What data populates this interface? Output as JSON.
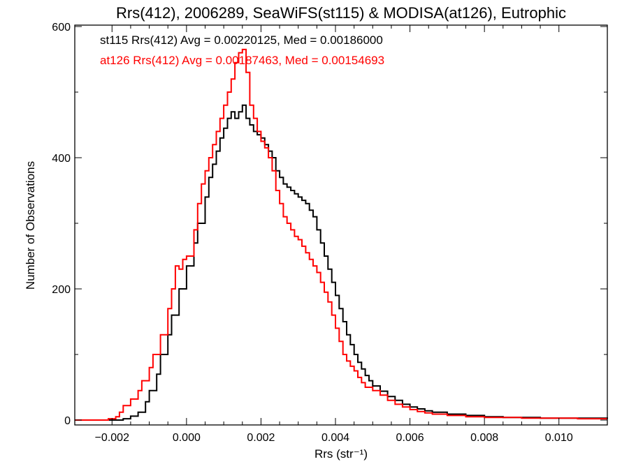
{
  "chart_data": {
    "type": "line",
    "step": true,
    "title": "Rrs(412), 2006289, SeaWiFS(st115) & MODISA(at126), Eutrophic",
    "xlabel": "Rrs (str⁻¹)",
    "ylabel": "Number of Observations",
    "xlim": [
      -0.003,
      0.0113
    ],
    "ylim": [
      0,
      600
    ],
    "xticks": [
      -0.002,
      0.0,
      0.002,
      0.004,
      0.006,
      0.008,
      0.01
    ],
    "xtick_labels": [
      "−0.002",
      "0.000",
      "0.002",
      "0.004",
      "0.006",
      "0.008",
      "0.010"
    ],
    "yticks": [
      0,
      200,
      400,
      600
    ],
    "ytick_labels": [
      "0",
      "200",
      "400",
      "600"
    ],
    "grid": false,
    "legend_position": "top-left",
    "annotations": [
      {
        "text": "st115 Rrs(412) Avg = 0.00220125, Med = 0.00186000",
        "color": "#000000"
      },
      {
        "text": "at126 Rrs(412) Avg = 0.00187463, Med = 0.00154693",
        "color": "#ff0000"
      }
    ],
    "series": [
      {
        "name": "st115",
        "color": "#000000",
        "points": [
          [
            -0.003,
            0
          ],
          [
            -0.0024,
            0
          ],
          [
            -0.002,
            0
          ],
          [
            -0.0017,
            2
          ],
          [
            -0.0015,
            6
          ],
          [
            -0.0013,
            12
          ],
          [
            -0.0011,
            28
          ],
          [
            -0.001,
            45
          ],
          [
            -0.0008,
            70
          ],
          [
            -0.0007,
            100
          ],
          [
            -0.0005,
            130
          ],
          [
            -0.0004,
            160
          ],
          [
            -0.0002,
            200
          ],
          [
            0.0,
            235
          ],
          [
            0.0002,
            270
          ],
          [
            0.0003,
            300
          ],
          [
            0.0005,
            340
          ],
          [
            0.0006,
            370
          ],
          [
            0.0007,
            390
          ],
          [
            0.0008,
            410
          ],
          [
            0.0009,
            430
          ],
          [
            0.001,
            445
          ],
          [
            0.0011,
            460
          ],
          [
            0.0012,
            470
          ],
          [
            0.0013,
            460
          ],
          [
            0.0014,
            470
          ],
          [
            0.0015,
            480
          ],
          [
            0.0016,
            460
          ],
          [
            0.0017,
            450
          ],
          [
            0.0018,
            440
          ],
          [
            0.0019,
            435
          ],
          [
            0.002,
            430
          ],
          [
            0.0021,
            420
          ],
          [
            0.0022,
            410
          ],
          [
            0.0023,
            400
          ],
          [
            0.0024,
            380
          ],
          [
            0.0025,
            370
          ],
          [
            0.0026,
            360
          ],
          [
            0.0027,
            355
          ],
          [
            0.0028,
            350
          ],
          [
            0.0029,
            345
          ],
          [
            0.003,
            340
          ],
          [
            0.0031,
            335
          ],
          [
            0.0032,
            330
          ],
          [
            0.0033,
            320
          ],
          [
            0.0034,
            310
          ],
          [
            0.0035,
            290
          ],
          [
            0.0036,
            270
          ],
          [
            0.0037,
            250
          ],
          [
            0.0038,
            230
          ],
          [
            0.0039,
            210
          ],
          [
            0.004,
            190
          ],
          [
            0.0041,
            170
          ],
          [
            0.0042,
            150
          ],
          [
            0.0043,
            130
          ],
          [
            0.0044,
            115
          ],
          [
            0.0045,
            100
          ],
          [
            0.0046,
            88
          ],
          [
            0.0047,
            78
          ],
          [
            0.0048,
            68
          ],
          [
            0.0049,
            60
          ],
          [
            0.005,
            52
          ],
          [
            0.0052,
            44
          ],
          [
            0.0054,
            36
          ],
          [
            0.0056,
            30
          ],
          [
            0.0058,
            24
          ],
          [
            0.006,
            20
          ],
          [
            0.0062,
            17
          ],
          [
            0.0064,
            14
          ],
          [
            0.0066,
            12
          ],
          [
            0.007,
            9
          ],
          [
            0.0075,
            7
          ],
          [
            0.008,
            5
          ],
          [
            0.0085,
            4
          ],
          [
            0.009,
            4
          ],
          [
            0.0095,
            3
          ],
          [
            0.01,
            3
          ],
          [
            0.0105,
            3
          ],
          [
            0.0113,
            2
          ]
        ]
      },
      {
        "name": "at126",
        "color": "#ff0000",
        "points": [
          [
            -0.003,
            0
          ],
          [
            -0.0024,
            0
          ],
          [
            -0.0021,
            2
          ],
          [
            -0.0019,
            5
          ],
          [
            -0.0018,
            12
          ],
          [
            -0.0017,
            22
          ],
          [
            -0.0015,
            32
          ],
          [
            -0.0013,
            45
          ],
          [
            -0.0012,
            60
          ],
          [
            -0.001,
            80
          ],
          [
            -0.0009,
            100
          ],
          [
            -0.0007,
            130
          ],
          [
            -0.0005,
            170
          ],
          [
            -0.0004,
            200
          ],
          [
            -0.0003,
            235
          ],
          [
            -0.0002,
            230
          ],
          [
            -0.0001,
            245
          ],
          [
            0.0,
            250
          ],
          [
            0.0002,
            290
          ],
          [
            0.0003,
            330
          ],
          [
            0.0004,
            360
          ],
          [
            0.0005,
            380
          ],
          [
            0.0006,
            400
          ],
          [
            0.0007,
            420
          ],
          [
            0.0008,
            440
          ],
          [
            0.0009,
            460
          ],
          [
            0.001,
            480
          ],
          [
            0.0011,
            500
          ],
          [
            0.0012,
            520
          ],
          [
            0.0013,
            545
          ],
          [
            0.0014,
            560
          ],
          [
            0.0015,
            565
          ],
          [
            0.0016,
            530
          ],
          [
            0.0017,
            480
          ],
          [
            0.0018,
            460
          ],
          [
            0.0019,
            440
          ],
          [
            0.002,
            425
          ],
          [
            0.0021,
            415
          ],
          [
            0.0022,
            400
          ],
          [
            0.0023,
            380
          ],
          [
            0.0024,
            350
          ],
          [
            0.0025,
            330
          ],
          [
            0.0026,
            310
          ],
          [
            0.0027,
            300
          ],
          [
            0.0028,
            290
          ],
          [
            0.0029,
            280
          ],
          [
            0.003,
            275
          ],
          [
            0.0031,
            265
          ],
          [
            0.0032,
            255
          ],
          [
            0.0033,
            245
          ],
          [
            0.0034,
            235
          ],
          [
            0.0035,
            225
          ],
          [
            0.0036,
            210
          ],
          [
            0.0037,
            195
          ],
          [
            0.0038,
            180
          ],
          [
            0.0039,
            160
          ],
          [
            0.004,
            140
          ],
          [
            0.0041,
            120
          ],
          [
            0.0042,
            100
          ],
          [
            0.0043,
            90
          ],
          [
            0.0044,
            82
          ],
          [
            0.0045,
            75
          ],
          [
            0.0046,
            65
          ],
          [
            0.0047,
            57
          ],
          [
            0.0048,
            50
          ],
          [
            0.005,
            45
          ],
          [
            0.0052,
            38
          ],
          [
            0.0054,
            30
          ],
          [
            0.0056,
            24
          ],
          [
            0.0058,
            20
          ],
          [
            0.006,
            16
          ],
          [
            0.0062,
            13
          ],
          [
            0.0064,
            11
          ],
          [
            0.0066,
            9
          ],
          [
            0.007,
            7
          ],
          [
            0.0075,
            5
          ],
          [
            0.008,
            4
          ],
          [
            0.0085,
            4
          ],
          [
            0.009,
            3
          ],
          [
            0.0095,
            3
          ],
          [
            0.01,
            3
          ],
          [
            0.0105,
            2
          ],
          [
            0.0113,
            2
          ]
        ]
      }
    ]
  }
}
